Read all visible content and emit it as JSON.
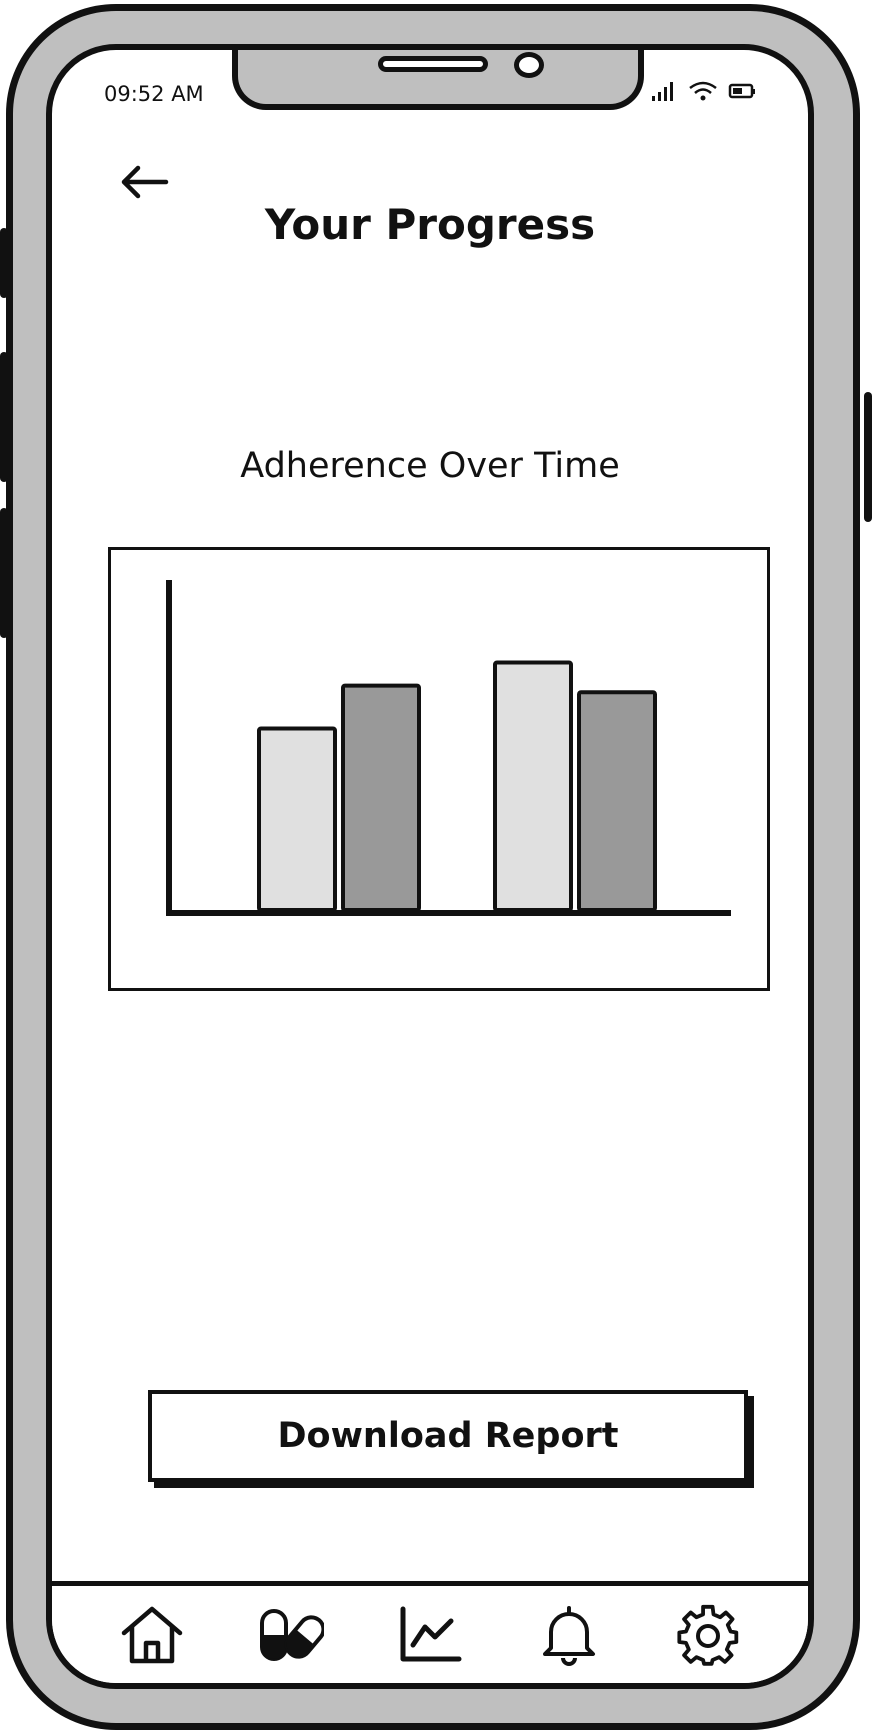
{
  "status_bar": {
    "time": "09:52 AM",
    "icons": [
      "signal-icon",
      "wifi-icon",
      "battery-icon"
    ]
  },
  "header": {
    "back_icon": "back-arrow-icon",
    "title": "Your Progress"
  },
  "chart": {
    "title": "Adherence Over Time"
  },
  "chart_data": {
    "type": "bar",
    "title": "Adherence Over Time",
    "categories": [
      "",
      ""
    ],
    "series": [
      {
        "values": [
          55,
          75
        ],
        "color": "#e0e0e0"
      },
      {
        "values": [
          68,
          66
        ],
        "color": "#999999"
      }
    ],
    "ylim": [
      0,
      100
    ],
    "xlabel": "",
    "ylabel": "",
    "grid": false,
    "legend": "none"
  },
  "actions": {
    "download_label": "Download Report"
  },
  "nav": {
    "items": [
      {
        "icon": "home-icon"
      },
      {
        "icon": "pills-icon"
      },
      {
        "icon": "chart-icon"
      },
      {
        "icon": "bell-icon"
      },
      {
        "icon": "gear-icon"
      }
    ]
  }
}
